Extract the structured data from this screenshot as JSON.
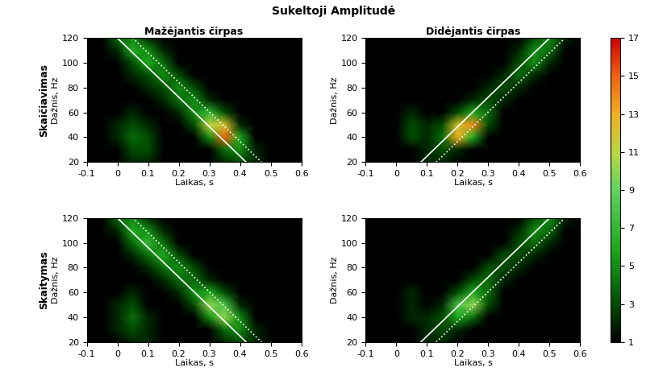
{
  "title": "Sukeltoji Amplitudė",
  "colorbar": {
    "range": [
      1,
      17
    ],
    "ticks": [
      1,
      3,
      5,
      7,
      9,
      11,
      13,
      15,
      17
    ]
  },
  "chart_data": [
    {
      "type": "heatmap",
      "title": "Mažėjantis čirpas",
      "row_label": "Skaičiavimas",
      "xlabel": "Laikas, s",
      "ylabel": "Dažnis, Hz",
      "xlim": [
        -0.1,
        0.6
      ],
      "ylim": [
        20,
        120
      ],
      "xticks": [
        -0.1,
        0,
        0.1,
        0.2,
        0.3,
        0.4,
        0.5,
        0.6
      ],
      "yticks": [
        20,
        40,
        60,
        80,
        100,
        120
      ],
      "x": [
        -0.1,
        -0.05,
        0,
        0.05,
        0.1,
        0.15,
        0.2,
        0.25,
        0.3,
        0.35,
        0.4,
        0.45,
        0.5,
        0.55,
        0.6
      ],
      "y": [
        20,
        30,
        40,
        50,
        60,
        70,
        80,
        90,
        100,
        110,
        120
      ],
      "cells": [
        [
          1,
          1,
          1,
          2,
          2,
          1,
          1,
          1,
          1,
          2,
          3,
          2,
          1,
          1,
          1
        ],
        [
          1,
          1,
          1,
          3,
          3,
          1,
          1,
          1,
          1,
          4,
          5,
          2,
          1,
          1,
          1
        ],
        [
          1,
          1,
          2,
          4,
          3,
          1,
          1,
          1,
          5,
          15,
          6,
          1,
          1,
          1,
          1
        ],
        [
          1,
          1,
          2,
          3,
          2,
          1,
          1,
          3,
          11,
          12,
          2,
          1,
          1,
          1,
          1
        ],
        [
          1,
          1,
          1,
          2,
          1,
          1,
          2,
          5,
          7,
          3,
          1,
          1,
          1,
          1,
          1
        ],
        [
          1,
          1,
          1,
          1,
          1,
          2,
          4,
          5,
          2,
          1,
          1,
          1,
          1,
          1,
          1
        ],
        [
          1,
          1,
          1,
          1,
          2,
          3,
          5,
          3,
          1,
          1,
          1,
          1,
          1,
          1,
          1
        ],
        [
          1,
          1,
          1,
          2,
          3,
          5,
          3,
          1,
          1,
          1,
          1,
          1,
          1,
          1,
          1
        ],
        [
          1,
          1,
          1,
          3,
          6,
          4,
          1,
          1,
          1,
          1,
          1,
          1,
          1,
          1,
          1
        ],
        [
          1,
          1,
          2,
          6,
          5,
          2,
          1,
          1,
          1,
          1,
          1,
          1,
          1,
          1,
          1
        ],
        [
          1,
          1,
          4,
          5,
          2,
          1,
          1,
          1,
          1,
          1,
          1,
          1,
          1,
          1,
          1
        ]
      ],
      "lines": [
        {
          "x": [
            0,
            0.42
          ],
          "y": [
            120,
            20
          ],
          "color": "white",
          "line_style": "solid"
        },
        {
          "x": [
            0.05,
            0.47
          ],
          "y": [
            120,
            20
          ],
          "color": "white",
          "line_style": "dotted"
        }
      ]
    },
    {
      "type": "heatmap",
      "title": "Didėjantis čirpas",
      "xlabel": "Laikas, s",
      "ylabel": "Dažnis, Hz",
      "xlim": [
        -0.1,
        0.6
      ],
      "ylim": [
        20,
        120
      ],
      "xticks": [
        -0.1,
        0,
        0.1,
        0.2,
        0.3,
        0.4,
        0.5,
        0.6
      ],
      "yticks": [
        20,
        40,
        60,
        80,
        100,
        120
      ],
      "x": [
        -0.1,
        -0.05,
        0,
        0.05,
        0.1,
        0.15,
        0.2,
        0.25,
        0.3,
        0.35,
        0.4,
        0.45,
        0.5,
        0.55,
        0.6
      ],
      "y": [
        20,
        30,
        40,
        50,
        60,
        70,
        80,
        90,
        100,
        110,
        120
      ],
      "cells": [
        [
          1,
          1,
          1,
          1,
          2,
          2,
          1,
          1,
          1,
          1,
          1,
          1,
          1,
          1,
          1
        ],
        [
          1,
          1,
          1,
          1,
          2,
          3,
          2,
          1,
          1,
          1,
          1,
          1,
          1,
          1,
          1
        ],
        [
          1,
          1,
          1,
          3,
          2,
          4,
          13,
          6,
          1,
          1,
          1,
          1,
          1,
          1,
          1
        ],
        [
          1,
          1,
          1,
          3,
          2,
          3,
          12,
          14,
          3,
          1,
          1,
          1,
          1,
          1,
          1
        ],
        [
          1,
          1,
          1,
          2,
          1,
          1,
          3,
          6,
          4,
          1,
          1,
          1,
          1,
          1,
          1
        ],
        [
          1,
          1,
          1,
          1,
          1,
          1,
          1,
          2,
          3,
          2,
          1,
          1,
          1,
          1,
          1
        ],
        [
          1,
          1,
          1,
          1,
          1,
          1,
          1,
          1,
          2,
          3,
          2,
          1,
          1,
          1,
          1
        ],
        [
          1,
          1,
          1,
          1,
          1,
          1,
          1,
          1,
          1,
          2,
          4,
          2,
          1,
          1,
          1
        ],
        [
          1,
          1,
          1,
          1,
          1,
          1,
          1,
          1,
          1,
          1,
          3,
          5,
          2,
          1,
          1
        ],
        [
          1,
          1,
          1,
          1,
          1,
          1,
          1,
          1,
          1,
          1,
          2,
          5,
          4,
          1,
          1
        ],
        [
          1,
          1,
          1,
          1,
          1,
          1,
          1,
          1,
          1,
          1,
          1,
          3,
          5,
          2,
          1
        ]
      ],
      "lines": [
        {
          "x": [
            0.08,
            0.5
          ],
          "y": [
            20,
            120
          ],
          "color": "white",
          "line_style": "solid"
        },
        {
          "x": [
            0.13,
            0.55
          ],
          "y": [
            20,
            120
          ],
          "color": "white",
          "line_style": "dotted"
        }
      ]
    },
    {
      "type": "heatmap",
      "row_label": "Skaitymas",
      "xlabel": "Laikas, s",
      "ylabel": "Dažnis, Hz",
      "xlim": [
        -0.1,
        0.6
      ],
      "ylim": [
        20,
        120
      ],
      "xticks": [
        -0.1,
        0,
        0.1,
        0.2,
        0.3,
        0.4,
        0.5,
        0.6
      ],
      "yticks": [
        20,
        40,
        60,
        80,
        100,
        120
      ],
      "x": [
        -0.1,
        -0.05,
        0,
        0.05,
        0.1,
        0.15,
        0.2,
        0.25,
        0.3,
        0.35,
        0.4,
        0.45,
        0.5,
        0.55,
        0.6
      ],
      "y": [
        20,
        30,
        40,
        50,
        60,
        70,
        80,
        90,
        100,
        110,
        120
      ],
      "cells": [
        [
          1,
          1,
          1,
          2,
          2,
          1,
          1,
          1,
          1,
          2,
          3,
          2,
          1,
          1,
          1
        ],
        [
          1,
          1,
          2,
          3,
          2,
          1,
          1,
          1,
          1,
          4,
          5,
          2,
          1,
          1,
          1
        ],
        [
          1,
          1,
          2,
          4,
          2,
          1,
          1,
          1,
          5,
          10,
          5,
          1,
          1,
          1,
          1
        ],
        [
          1,
          1,
          2,
          3,
          1,
          1,
          1,
          3,
          10,
          8,
          2,
          1,
          1,
          1,
          1
        ],
        [
          1,
          1,
          1,
          2,
          1,
          1,
          2,
          5,
          6,
          3,
          1,
          1,
          1,
          1,
          1
        ],
        [
          1,
          1,
          1,
          1,
          1,
          2,
          4,
          4,
          2,
          1,
          1,
          1,
          1,
          1,
          1
        ],
        [
          1,
          1,
          1,
          1,
          2,
          4,
          5,
          3,
          1,
          1,
          1,
          1,
          1,
          1,
          1
        ],
        [
          1,
          1,
          1,
          2,
          4,
          6,
          3,
          1,
          1,
          1,
          1,
          1,
          1,
          1,
          1
        ],
        [
          1,
          1,
          1,
          4,
          7,
          4,
          1,
          1,
          1,
          1,
          1,
          1,
          1,
          1,
          1
        ],
        [
          1,
          1,
          2,
          6,
          5,
          2,
          1,
          1,
          1,
          1,
          1,
          1,
          1,
          1,
          1
        ],
        [
          1,
          1,
          4,
          5,
          2,
          1,
          1,
          1,
          1,
          1,
          1,
          1,
          1,
          1,
          1
        ]
      ],
      "lines": [
        {
          "x": [
            0,
            0.42
          ],
          "y": [
            120,
            20
          ],
          "color": "white",
          "line_style": "solid"
        },
        {
          "x": [
            0.05,
            0.47
          ],
          "y": [
            120,
            20
          ],
          "color": "white",
          "line_style": "dotted"
        }
      ]
    },
    {
      "type": "heatmap",
      "xlabel": "Laikas, s",
      "ylabel": "Dažnis, Hz",
      "xlim": [
        -0.1,
        0.6
      ],
      "ylim": [
        20,
        120
      ],
      "xticks": [
        -0.1,
        0,
        0.1,
        0.2,
        0.3,
        0.4,
        0.5,
        0.6
      ],
      "yticks": [
        20,
        40,
        60,
        80,
        100,
        120
      ],
      "x": [
        -0.1,
        -0.05,
        0,
        0.05,
        0.1,
        0.15,
        0.2,
        0.25,
        0.3,
        0.35,
        0.4,
        0.45,
        0.5,
        0.55,
        0.6
      ],
      "y": [
        20,
        30,
        40,
        50,
        60,
        70,
        80,
        90,
        100,
        110,
        120
      ],
      "cells": [
        [
          1,
          1,
          1,
          1,
          2,
          2,
          1,
          1,
          1,
          1,
          1,
          1,
          1,
          1,
          1
        ],
        [
          1,
          1,
          1,
          1,
          2,
          3,
          2,
          1,
          1,
          1,
          1,
          1,
          1,
          1,
          1
        ],
        [
          1,
          1,
          1,
          2,
          2,
          3,
          6,
          4,
          1,
          1,
          1,
          1,
          1,
          1,
          1
        ],
        [
          1,
          1,
          1,
          2,
          1,
          2,
          8,
          10,
          3,
          1,
          1,
          1,
          1,
          1,
          1
        ],
        [
          1,
          1,
          1,
          2,
          1,
          1,
          3,
          6,
          4,
          1,
          1,
          1,
          1,
          1,
          1
        ],
        [
          1,
          1,
          1,
          1,
          1,
          1,
          1,
          3,
          4,
          2,
          1,
          1,
          1,
          1,
          1
        ],
        [
          1,
          1,
          1,
          1,
          1,
          1,
          1,
          1,
          3,
          3,
          2,
          1,
          1,
          1,
          1
        ],
        [
          1,
          1,
          1,
          1,
          1,
          1,
          1,
          1,
          1,
          3,
          3,
          2,
          1,
          1,
          1
        ],
        [
          1,
          1,
          1,
          1,
          1,
          1,
          1,
          1,
          1,
          1,
          3,
          4,
          2,
          1,
          1
        ],
        [
          1,
          1,
          1,
          1,
          1,
          1,
          1,
          1,
          1,
          1,
          2,
          5,
          4,
          1,
          1
        ],
        [
          1,
          1,
          1,
          1,
          1,
          1,
          1,
          1,
          1,
          1,
          1,
          3,
          5,
          2,
          1
        ]
      ],
      "lines": [
        {
          "x": [
            0.08,
            0.5
          ],
          "y": [
            20,
            120
          ],
          "color": "white",
          "line_style": "solid"
        },
        {
          "x": [
            0.13,
            0.55
          ],
          "y": [
            20,
            120
          ],
          "color": "white",
          "line_style": "dotted"
        }
      ]
    }
  ]
}
